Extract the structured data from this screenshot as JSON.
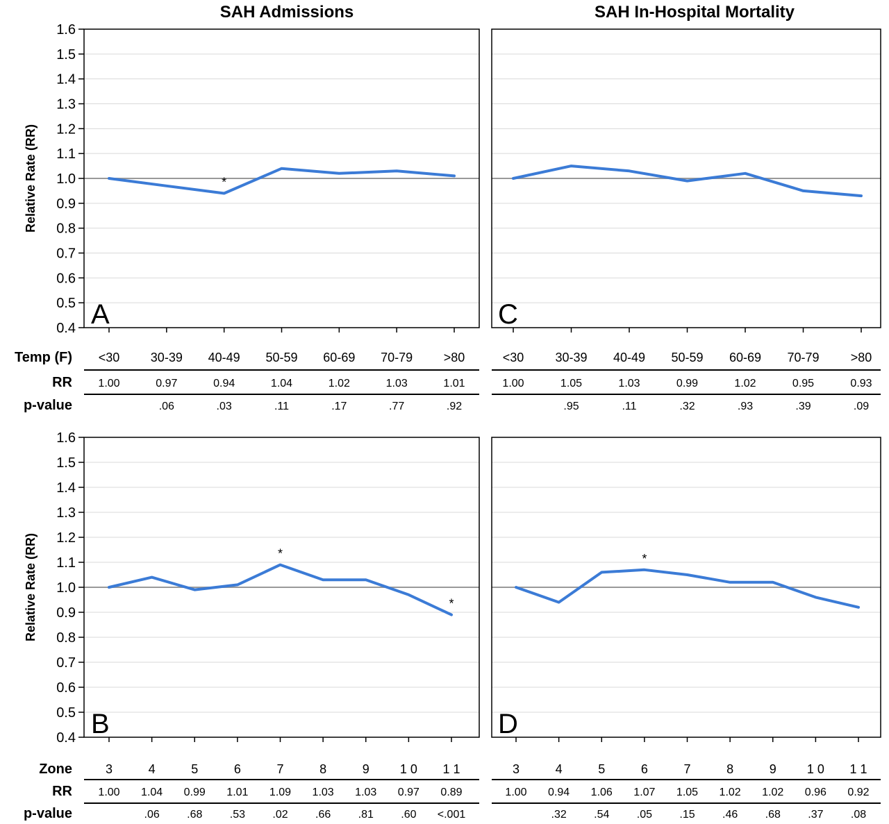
{
  "titles": {
    "left": "SAH Admissions",
    "right": "SAH In-Hospital Mortality"
  },
  "colors": {
    "series": "#3b7bd6",
    "reference": "#999999",
    "grid": "#d9d9d9",
    "frame": "#000000"
  },
  "row_labels": {
    "temp": "Temp (F)",
    "zone": "Zone",
    "rr": "RR",
    "pvalue": "p-value"
  },
  "chart_data": [
    {
      "panel": "A",
      "type": "line",
      "title": "SAH Admissions",
      "ylabel": "Relative Rate (RR)",
      "ylim": [
        0.4,
        1.6
      ],
      "yticks": [
        "1.6",
        "1.5",
        "1.4",
        "1.3",
        "1.2",
        "1.1",
        "1.0",
        "0.9",
        "0.8",
        "0.7",
        "0.6",
        "0.5",
        "0.4"
      ],
      "reference_line": 1.0,
      "grid": true,
      "categories": [
        "<30",
        "30-39",
        "40-49",
        "50-59",
        "60-69",
        "70-79",
        ">80"
      ],
      "values": [
        1.0,
        0.97,
        0.94,
        1.04,
        1.02,
        1.03,
        1.01
      ],
      "rr_labels": [
        "1.00",
        "0.97",
        "0.94",
        "1.04",
        "1.02",
        "1.03",
        "1.01"
      ],
      "pvalues": [
        "",
        ".06",
        ".03",
        ".11",
        ".17",
        ".77",
        ".92"
      ],
      "significant": [
        2
      ]
    },
    {
      "panel": "C",
      "type": "line",
      "title": "SAH In-Hospital Mortality",
      "ylabel": "",
      "ylim": [
        0.4,
        1.6
      ],
      "reference_line": 1.0,
      "grid": true,
      "categories": [
        "<30",
        "30-39",
        "40-49",
        "50-59",
        "60-69",
        "70-79",
        ">80"
      ],
      "values": [
        1.0,
        1.05,
        1.03,
        0.99,
        1.02,
        0.95,
        0.93
      ],
      "rr_labels": [
        "1.00",
        "1.05",
        "1.03",
        "0.99",
        "1.02",
        "0.95",
        "0.93"
      ],
      "pvalues": [
        "",
        ".95",
        ".11",
        ".32",
        ".93",
        ".39",
        ".09"
      ],
      "significant": []
    },
    {
      "panel": "B",
      "type": "line",
      "title": "",
      "ylabel": "Relative Rate (RR)",
      "ylim": [
        0.4,
        1.6
      ],
      "yticks": [
        "1.6",
        "1.5",
        "1.4",
        "1.3",
        "1.2",
        "1.1",
        "1.0",
        "0.9",
        "0.8",
        "0.7",
        "0.6",
        "0.5",
        "0.4"
      ],
      "reference_line": 1.0,
      "grid": true,
      "categories": [
        "3",
        "4",
        "5",
        "6",
        "7",
        "8",
        "9",
        "1 0",
        "1 1"
      ],
      "values": [
        1.0,
        1.04,
        0.99,
        1.01,
        1.09,
        1.03,
        1.03,
        0.97,
        0.89
      ],
      "rr_labels": [
        "1.00",
        "1.04",
        "0.99",
        "1.01",
        "1.09",
        "1.03",
        "1.03",
        "0.97",
        "0.89"
      ],
      "pvalues": [
        "",
        ".06",
        ".68",
        ".53",
        ".02",
        ".66",
        ".81",
        ".60",
        "<.001"
      ],
      "significant": [
        4,
        8
      ]
    },
    {
      "panel": "D",
      "type": "line",
      "title": "",
      "ylabel": "",
      "ylim": [
        0.4,
        1.6
      ],
      "reference_line": 1.0,
      "grid": true,
      "categories": [
        "3",
        "4",
        "5",
        "6",
        "7",
        "8",
        "9",
        "1 0",
        "1 1"
      ],
      "values": [
        1.0,
        0.94,
        1.06,
        1.07,
        1.05,
        1.02,
        1.02,
        0.96,
        0.92
      ],
      "rr_labels": [
        "1.00",
        "0.94",
        "1.06",
        "1.07",
        "1.05",
        "1.02",
        "1.02",
        "0.96",
        "0.92"
      ],
      "pvalues": [
        "",
        ".32",
        ".54",
        ".05",
        ".15",
        ".46",
        ".68",
        ".37",
        ".08"
      ],
      "significant": [
        3
      ]
    }
  ]
}
